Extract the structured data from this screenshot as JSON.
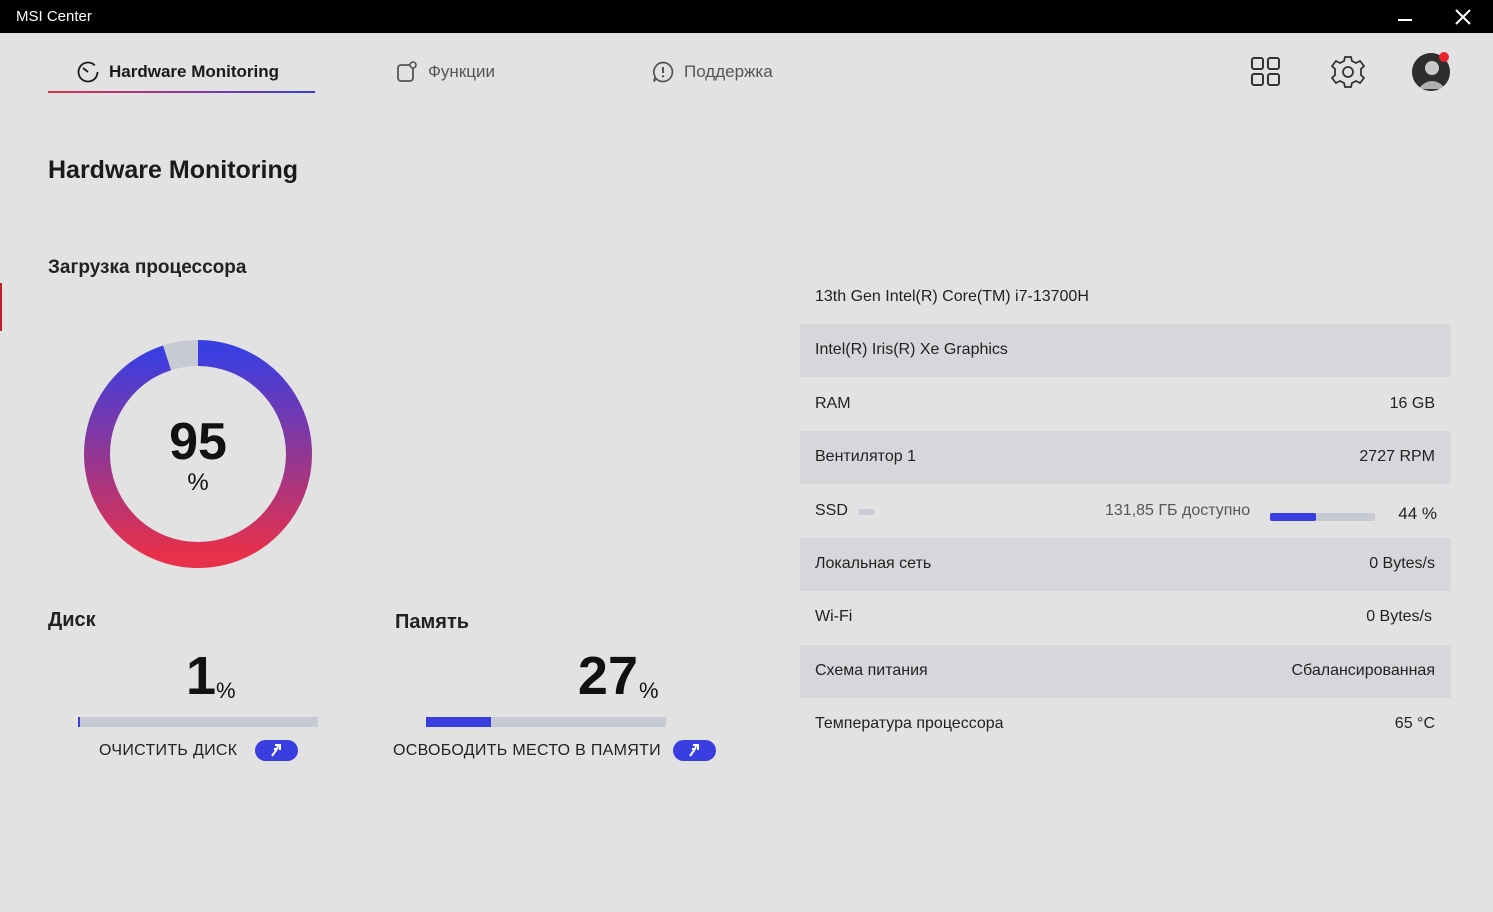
{
  "window": {
    "title": "MSI Center"
  },
  "tabs": [
    {
      "label": "Hardware Monitoring",
      "icon": "monitor-dial-icon"
    },
    {
      "label": "Функции",
      "icon": "features-icon"
    },
    {
      "label": "Поддержка",
      "icon": "support-icon"
    }
  ],
  "header_icons": [
    "apps-grid-icon",
    "gear-icon",
    "avatar"
  ],
  "page": {
    "title": "Hardware Monitoring"
  },
  "cpu": {
    "label": "Загрузка процессора",
    "value": "95",
    "unit": "%",
    "percent": 95
  },
  "disk": {
    "label": "Диск",
    "value": "1",
    "unit": "%",
    "percent": 1,
    "action": "ОЧИСТИТЬ ДИСК"
  },
  "memory": {
    "label": "Память",
    "value": "27",
    "unit": "%",
    "percent": 27,
    "action": "ОСВОБОДИТЬ МЕСТО В ПАМЯТИ"
  },
  "info": {
    "cpu_name": "13th Gen Intel(R) Core(TM) i7-13700H",
    "gpu_name": "Intel(R) Iris(R) Xe Graphics",
    "ram": {
      "label": "RAM",
      "value": "16 GB"
    },
    "fan": {
      "label": "Вентилятор 1",
      "value": "2727 RPM"
    },
    "ssd": {
      "label": "SSD",
      "free": "131,85 ГБ доступно",
      "value": "44 %",
      "percent": 44
    },
    "lan": {
      "label": "Локальная сеть",
      "value": "0 Bytes/s"
    },
    "wifi": {
      "label": "Wi-Fi",
      "value": "0 Bytes/s"
    },
    "power": {
      "label": "Схема питания",
      "value": "Сбалансированная"
    },
    "cpu_temp": {
      "label": "Температура процессора",
      "value": "65 °C"
    }
  },
  "colors": {
    "accent": "#3a3ee0",
    "gradient_start": "#e8304a",
    "gradient_end": "#3a3ee0",
    "track": "#c8cad3",
    "notification": "#e8242f"
  }
}
